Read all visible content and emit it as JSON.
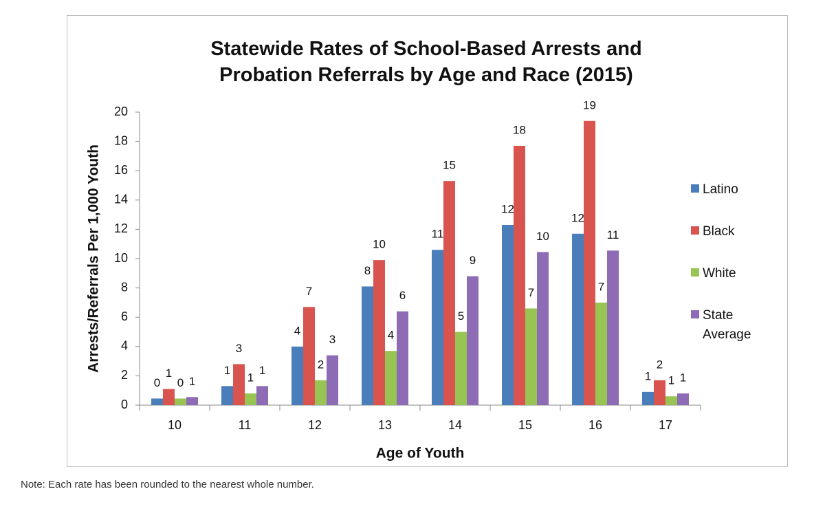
{
  "chart_data": {
    "type": "bar",
    "title": "Statewide Rates of School-Based Arrests and Probation Referrals by Age and Race (2015)",
    "x_label": "Age of Youth",
    "y_label": "Arrests/Referrals Per 1,000 Youth",
    "categories": [
      "10",
      "11",
      "12",
      "13",
      "14",
      "15",
      "16",
      "17"
    ],
    "series": [
      {
        "name": "Latino",
        "color": "#4a7ebb",
        "values": [
          0.45,
          1.3,
          4.0,
          8.1,
          10.6,
          12.3,
          11.7,
          0.9
        ],
        "value_labels": [
          "0",
          "1",
          "4",
          "8",
          "11",
          "12",
          "12",
          "1"
        ]
      },
      {
        "name": "Black",
        "color": "#d9534f",
        "values": [
          1.1,
          2.8,
          6.7,
          9.9,
          15.3,
          17.7,
          19.4,
          1.7
        ],
        "value_labels": [
          "1",
          "3",
          "7",
          "10",
          "15",
          "18",
          "19",
          "2"
        ]
      },
      {
        "name": "White",
        "color": "#98c454",
        "values": [
          0.45,
          0.8,
          1.7,
          3.7,
          5.0,
          6.6,
          7.0,
          0.6
        ],
        "value_labels": [
          "0",
          "1",
          "2",
          "4",
          "5",
          "7",
          "7",
          "1"
        ]
      },
      {
        "name": "State Average",
        "color": "#8d6bb5",
        "values": [
          0.55,
          1.3,
          3.4,
          6.4,
          8.8,
          10.45,
          10.55,
          0.8
        ],
        "value_labels": [
          "1",
          "1",
          "3",
          "6",
          "9",
          "10",
          "11",
          "1"
        ]
      }
    ],
    "ylim": [
      0,
      20
    ],
    "yticks": [
      0,
      2,
      4,
      6,
      8,
      10,
      12,
      14,
      16,
      18,
      20
    ],
    "grid": false,
    "legend": "right"
  },
  "note": "Note: Each rate has been rounded to the nearest whole number."
}
